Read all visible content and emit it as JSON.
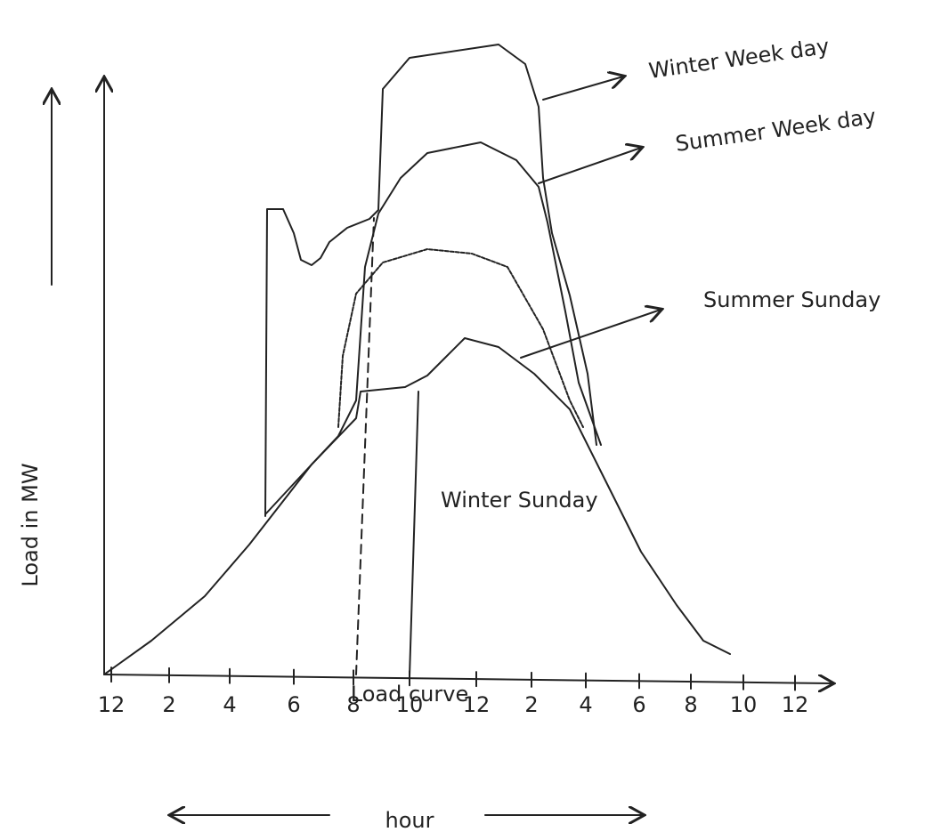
{
  "title": "Load curve",
  "y_axis_label": "Load in MW",
  "x_axis_label": "hour",
  "x_ticks": [
    "12",
    "2",
    "4",
    "6",
    "8",
    "10",
    "12",
    "2",
    "4",
    "6",
    "8",
    "10",
    "12"
  ],
  "curves": [
    {
      "label": "Winter Week day"
    },
    {
      "label": "Summer Week day"
    },
    {
      "label": "Summer Sunday"
    },
    {
      "label": "Winter Sunday"
    }
  ]
}
